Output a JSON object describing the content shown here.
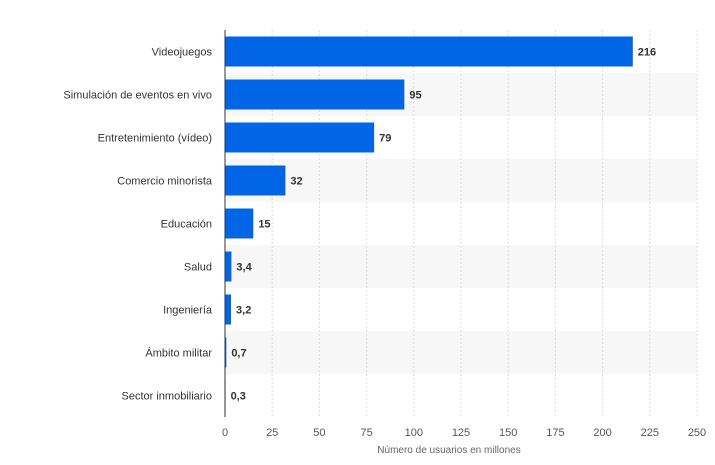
{
  "chart_data": {
    "type": "bar",
    "orientation": "horizontal",
    "categories": [
      "Videojuegos",
      "Simulación de eventos en vivo",
      "Entretenimiento (vídeo)",
      "Comercio minorista",
      "Educación",
      "Salud",
      "Ingeniería",
      "Ámbito militar",
      "Sector inmobiliario"
    ],
    "values": [
      216,
      95,
      79,
      32,
      15,
      3.4,
      3.2,
      0.7,
      0.3
    ],
    "value_labels": [
      "216",
      "95",
      "79",
      "32",
      "15",
      "3,4",
      "3,2",
      "0,7",
      "0,3"
    ],
    "xlabel": "Número de usuarios en millones",
    "ylabel": "",
    "xlim": [
      0,
      250
    ],
    "xticks": [
      0,
      25,
      50,
      75,
      100,
      125,
      150,
      175,
      200,
      225,
      250
    ],
    "grid": true,
    "bar_color": "#0066e6",
    "band_color": "#f7f7f7"
  }
}
